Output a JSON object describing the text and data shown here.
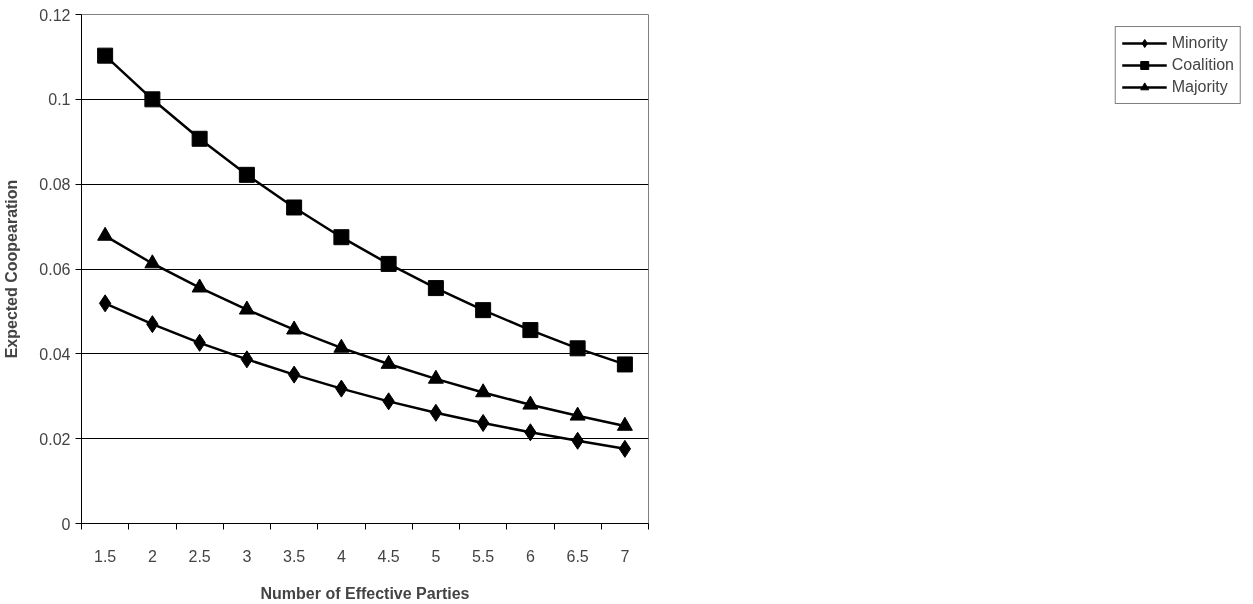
{
  "chart_data": {
    "type": "line",
    "xlabel": "Number of Effective Parties",
    "ylabel": "Expected Coopearation",
    "categories": [
      "1.5",
      "2",
      "2.5",
      "3",
      "3.5",
      "4",
      "4.5",
      "5",
      "5.5",
      "6",
      "6.5",
      "7"
    ],
    "series": [
      {
        "name": "Minority",
        "color": "#000000",
        "marker": "diamond",
        "values": [
          0.0519,
          0.047,
          0.0426,
          0.0387,
          0.0351,
          0.0318,
          0.0288,
          0.0261,
          0.0237,
          0.0215,
          0.0195,
          0.0176
        ]
      },
      {
        "name": "Coalition",
        "color": "#000000",
        "marker": "square",
        "values": [
          0.1103,
          0.1,
          0.0907,
          0.0822,
          0.0745,
          0.0675,
          0.0612,
          0.0555,
          0.0503,
          0.0456,
          0.0413,
          0.0375
        ]
      },
      {
        "name": "Majority",
        "color": "#000000",
        "marker": "triangle",
        "values": [
          0.0678,
          0.0613,
          0.0556,
          0.0504,
          0.0457,
          0.0414,
          0.0376,
          0.0341,
          0.0309,
          0.028,
          0.0254,
          0.023
        ]
      }
    ],
    "ylim": [
      0,
      0.12
    ],
    "yticks": [
      0,
      0.02,
      0.04,
      0.06,
      0.08,
      0.1,
      0.12
    ],
    "grid": "y",
    "legend": "right",
    "line_style": "solid"
  }
}
